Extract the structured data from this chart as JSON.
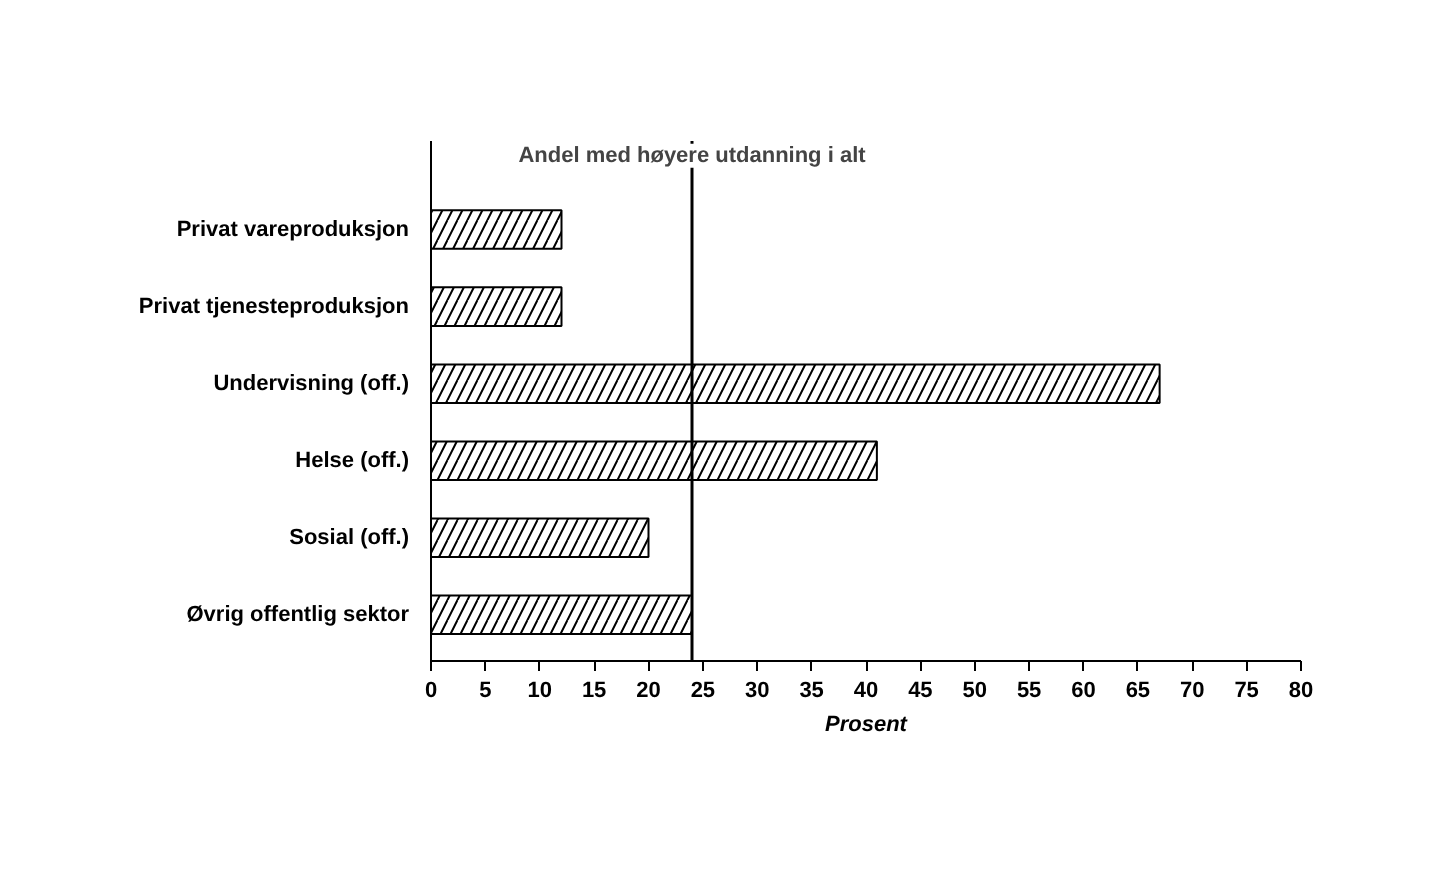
{
  "chart_data": {
    "type": "bar",
    "orientation": "horizontal",
    "categories": [
      "Privat vareproduksjon",
      "Privat tjenesteproduksjon",
      "Undervisning (off.)",
      "Helse (off.)",
      "Sosial (off.)",
      "Øvrig offentlig sektor"
    ],
    "values": [
      12,
      12,
      67,
      41,
      20,
      24
    ],
    "color": "#ffffff",
    "xlabel": "Prosent",
    "xlim": [
      0,
      80
    ],
    "xticks": [
      0,
      5,
      10,
      15,
      20,
      25,
      30,
      35,
      40,
      45,
      50,
      55,
      60,
      65,
      70,
      75,
      80
    ],
    "ref_lines": [
      {
        "axis": "x",
        "value": 24,
        "label": "Andel med høyere utdanning i alt",
        "color": "#000000"
      }
    ],
    "grid": false
  }
}
